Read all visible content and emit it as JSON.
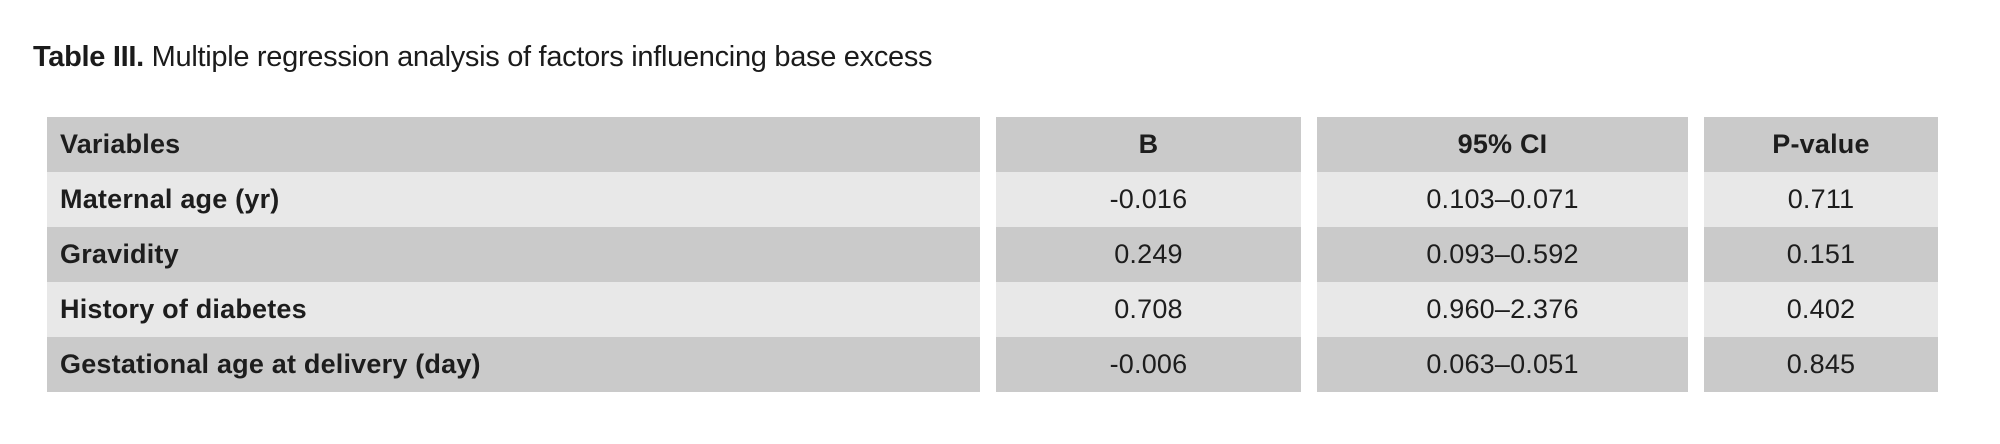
{
  "title": {
    "label": "Table III.",
    "text": " Multiple regression analysis of factors influencing base excess"
  },
  "table": {
    "columns": [
      "Variables",
      "B",
      "95% CI",
      "P-value"
    ],
    "rows": [
      [
        "Maternal age (yr)",
        "-0.016",
        "0.103–0.071",
        "0.711"
      ],
      [
        "Gravidity",
        "0.249",
        "0.093–0.592",
        "0.151"
      ],
      [
        "History of diabetes",
        "0.708",
        "0.960–2.376",
        "0.402"
      ],
      [
        "Gestational age at delivery (day)",
        "-0.006",
        "0.063–0.051",
        "0.845"
      ]
    ]
  },
  "colors": {
    "row_dark": "#cacaca",
    "row_light": "#e8e8e8",
    "text": "#1d1d1d",
    "background": "#ffffff"
  }
}
